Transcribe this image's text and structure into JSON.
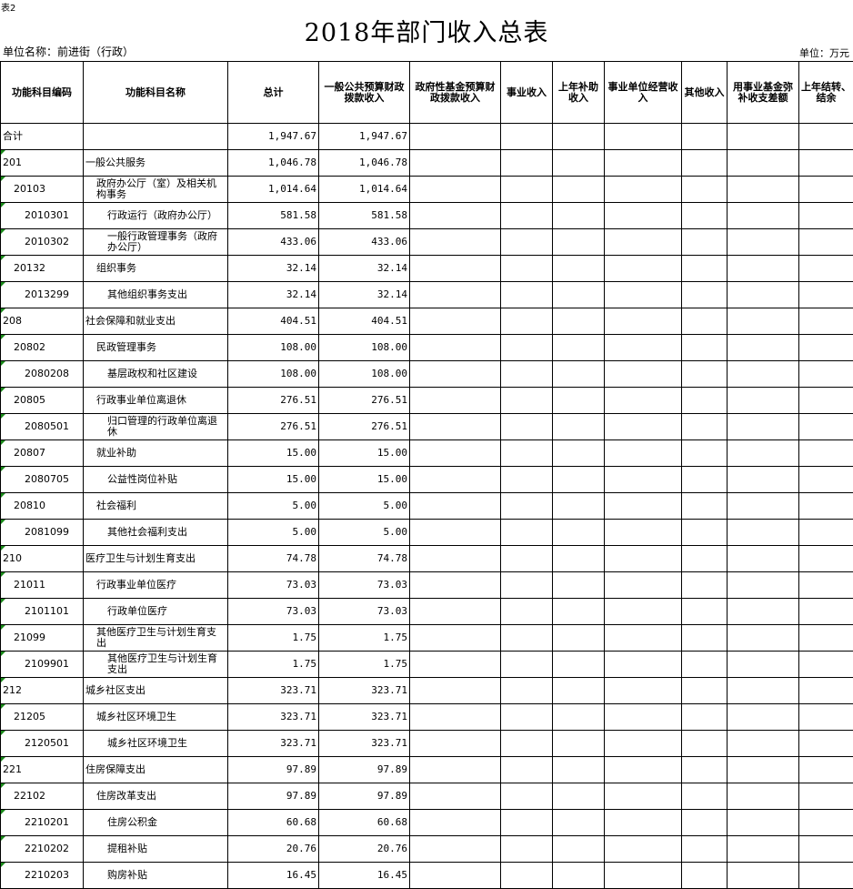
{
  "table_label": "表2",
  "title": "2018年部门收入总表",
  "unit_name": "单位名称：前进街（行政）",
  "unit": "单位：万元",
  "columns": [
    "功能科目编码",
    "功能科目名称",
    "总计",
    "一般公共预算财政拨款收入",
    "政府性基金预算财政拨款收入",
    "事业收入",
    "上年补助收入",
    "事业单位经营收入",
    "其他收入",
    "用事业基金弥补收支差额",
    "上年结转、结余"
  ],
  "rows": [
    {
      "code": "合计",
      "name": "",
      "total": "1,947.67",
      "general": "1,947.67",
      "level": 0
    },
    {
      "code": "201",
      "name": "一般公共服务",
      "total": "1,046.78",
      "general": "1,046.78",
      "level": 1
    },
    {
      "code": "20103",
      "name": "政府办公厅（室）及相关机构事务",
      "total": "1,014.64",
      "general": "1,014.64",
      "level": 2
    },
    {
      "code": "2010301",
      "name": "行政运行（政府办公厅）",
      "total": "581.58",
      "general": "581.58",
      "level": 3
    },
    {
      "code": "2010302",
      "name": "一般行政管理事务（政府办公厅）",
      "total": "433.06",
      "general": "433.06",
      "level": 3
    },
    {
      "code": "20132",
      "name": "组织事务",
      "total": "32.14",
      "general": "32.14",
      "level": 2
    },
    {
      "code": "2013299",
      "name": "其他组织事务支出",
      "total": "32.14",
      "general": "32.14",
      "level": 3
    },
    {
      "code": "208",
      "name": "社会保障和就业支出",
      "total": "404.51",
      "general": "404.51",
      "level": 1
    },
    {
      "code": "20802",
      "name": "民政管理事务",
      "total": "108.00",
      "general": "108.00",
      "level": 2
    },
    {
      "code": "2080208",
      "name": "基层政权和社区建设",
      "total": "108.00",
      "general": "108.00",
      "level": 3
    },
    {
      "code": "20805",
      "name": "行政事业单位离退休",
      "total": "276.51",
      "general": "276.51",
      "level": 2
    },
    {
      "code": "2080501",
      "name": "归口管理的行政单位离退休",
      "total": "276.51",
      "general": "276.51",
      "level": 3
    },
    {
      "code": "20807",
      "name": "就业补助",
      "total": "15.00",
      "general": "15.00",
      "level": 2
    },
    {
      "code": "2080705",
      "name": "公益性岗位补贴",
      "total": "15.00",
      "general": "15.00",
      "level": 3
    },
    {
      "code": "20810",
      "name": "社会福利",
      "total": "5.00",
      "general": "5.00",
      "level": 2
    },
    {
      "code": "2081099",
      "name": "其他社会福利支出",
      "total": "5.00",
      "general": "5.00",
      "level": 3
    },
    {
      "code": "210",
      "name": "医疗卫生与计划生育支出",
      "total": "74.78",
      "general": "74.78",
      "level": 1
    },
    {
      "code": "21011",
      "name": "行政事业单位医疗",
      "total": "73.03",
      "general": "73.03",
      "level": 2
    },
    {
      "code": "2101101",
      "name": "行政单位医疗",
      "total": "73.03",
      "general": "73.03",
      "level": 3
    },
    {
      "code": "21099",
      "name": "其他医疗卫生与计划生育支出",
      "total": "1.75",
      "general": "1.75",
      "level": 2
    },
    {
      "code": "2109901",
      "name": "其他医疗卫生与计划生育支出",
      "total": "1.75",
      "general": "1.75",
      "level": 3
    },
    {
      "code": "212",
      "name": "城乡社区支出",
      "total": "323.71",
      "general": "323.71",
      "level": 1
    },
    {
      "code": "21205",
      "name": "城乡社区环境卫生",
      "total": "323.71",
      "general": "323.71",
      "level": 2
    },
    {
      "code": "2120501",
      "name": "城乡社区环境卫生",
      "total": "323.71",
      "general": "323.71",
      "level": 3
    },
    {
      "code": "221",
      "name": "住房保障支出",
      "total": "97.89",
      "general": "97.89",
      "level": 1
    },
    {
      "code": "22102",
      "name": "住房改革支出",
      "total": "97.89",
      "general": "97.89",
      "level": 2
    },
    {
      "code": "2210201",
      "name": "住房公积金",
      "total": "60.68",
      "general": "60.68",
      "level": 3
    },
    {
      "code": "2210202",
      "name": "提租补贴",
      "total": "20.76",
      "general": "20.76",
      "level": 3
    },
    {
      "code": "2210203",
      "name": "购房补贴",
      "total": "16.45",
      "general": "16.45",
      "level": 3
    }
  ]
}
